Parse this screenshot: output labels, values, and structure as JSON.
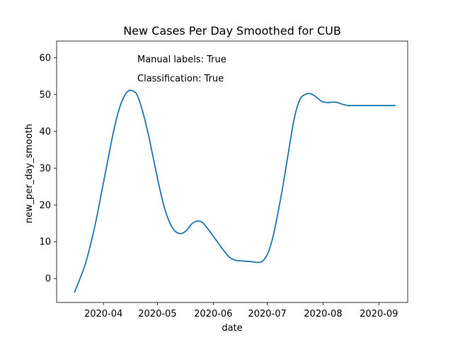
{
  "chart_data": {
    "type": "line",
    "title": "New Cases Per Day Smoothed for CUB",
    "xlabel": "date",
    "ylabel": "new_per_day_smooth",
    "x_axis_type": "date",
    "xlim": [
      "2020-03-06",
      "2020-09-17"
    ],
    "ylim": [
      -6.5,
      64.5
    ],
    "yticks": [
      0,
      10,
      20,
      30,
      40,
      50,
      60
    ],
    "xticks": [
      "2020-04-01",
      "2020-05-01",
      "2020-06-01",
      "2020-07-01",
      "2020-08-01",
      "2020-09-01"
    ],
    "xtick_labels": [
      "2020-04",
      "2020-05",
      "2020-06",
      "2020-07",
      "2020-08",
      "2020-09"
    ],
    "annotations": [
      "Manual labels: True",
      "Classification: True"
    ],
    "grid": false,
    "color": "#1f77b4",
    "series": [
      {
        "x": [
          "2020-03-16",
          "2020-03-19",
          "2020-03-22",
          "2020-03-25",
          "2020-03-28",
          "2020-03-31",
          "2020-04-03",
          "2020-04-06",
          "2020-04-09",
          "2020-04-12",
          "2020-04-15",
          "2020-04-18",
          "2020-04-20",
          "2020-04-23",
          "2020-04-26",
          "2020-04-29",
          "2020-05-02",
          "2020-05-05",
          "2020-05-08",
          "2020-05-11",
          "2020-05-14",
          "2020-05-17",
          "2020-05-20",
          "2020-05-23",
          "2020-05-26",
          "2020-05-29",
          "2020-06-01",
          "2020-06-04",
          "2020-06-07",
          "2020-06-10",
          "2020-06-13",
          "2020-06-16",
          "2020-06-19",
          "2020-06-22",
          "2020-06-25",
          "2020-06-28",
          "2020-07-01",
          "2020-07-04",
          "2020-07-07",
          "2020-07-10",
          "2020-07-13",
          "2020-07-16",
          "2020-07-19",
          "2020-07-22",
          "2020-07-25",
          "2020-07-28",
          "2020-07-31",
          "2020-08-03",
          "2020-08-06",
          "2020-08-09",
          "2020-08-12",
          "2020-08-15",
          "2020-08-18",
          "2020-08-21",
          "2020-08-24",
          "2020-08-27",
          "2020-08-30",
          "2020-09-02",
          "2020-09-05",
          "2020-09-08",
          "2020-09-10"
        ],
        "y": [
          -3.7,
          0.0,
          4.0,
          9.5,
          16.0,
          23.5,
          31.0,
          38.5,
          44.8,
          49.0,
          51.0,
          50.8,
          49.5,
          45.0,
          39.0,
          32.0,
          25.0,
          19.0,
          15.0,
          12.8,
          12.2,
          13.0,
          14.8,
          15.6,
          15.2,
          13.5,
          11.5,
          9.5,
          7.5,
          5.8,
          5.0,
          4.8,
          4.7,
          4.6,
          4.4,
          4.6,
          6.5,
          11.0,
          18.0,
          26.0,
          35.0,
          43.5,
          48.5,
          50.0,
          50.2,
          49.4,
          48.2,
          47.8,
          47.9,
          47.8,
          47.3,
          47.0,
          47.0,
          47.0,
          47.0,
          47.0,
          47.0,
          47.0,
          47.0,
          47.0,
          47.0
        ]
      }
    ]
  }
}
